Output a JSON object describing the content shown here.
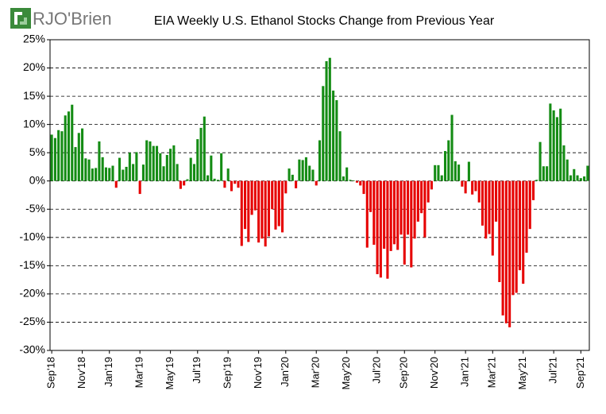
{
  "chart_data": {
    "type": "bar",
    "logo": "RJO'Brien",
    "title": "EIA Weekly U.S. Ethanol Stocks Change from Previous Year",
    "categories": [
      "Sep'18",
      null,
      null,
      null,
      null,
      null,
      null,
      null,
      null,
      "Nov'18",
      null,
      null,
      null,
      null,
      null,
      null,
      null,
      "Jan'19",
      null,
      null,
      null,
      null,
      null,
      null,
      null,
      null,
      "Mar'19",
      null,
      null,
      null,
      null,
      null,
      null,
      null,
      null,
      "May'19",
      null,
      null,
      null,
      null,
      null,
      null,
      null,
      "Jul'19",
      null,
      null,
      null,
      null,
      null,
      null,
      null,
      null,
      "Sep'19",
      null,
      null,
      null,
      null,
      null,
      null,
      null,
      null,
      "Nov'19",
      null,
      null,
      null,
      null,
      null,
      null,
      null,
      "Jan'20",
      null,
      null,
      null,
      null,
      null,
      null,
      null,
      null,
      "Mar'20",
      null,
      null,
      null,
      null,
      null,
      null,
      null,
      null,
      "May'20",
      null,
      null,
      null,
      null,
      null,
      null,
      null,
      null,
      "Jul'20",
      null,
      null,
      null,
      null,
      null,
      null,
      null,
      "Sep'20",
      null,
      null,
      null,
      null,
      null,
      null,
      null,
      null,
      "Nov'20",
      null,
      null,
      null,
      null,
      null,
      null,
      null,
      null,
      "Jan'21",
      null,
      null,
      null,
      null,
      null,
      null,
      null,
      "Mar'21",
      null,
      null,
      null,
      null,
      null,
      null,
      null,
      null,
      "May'21",
      null,
      null,
      null,
      null,
      null,
      null,
      null,
      null,
      "Jul'21",
      null,
      null,
      null,
      null,
      null,
      null,
      null,
      "Sep'21",
      null,
      null
    ],
    "values": [
      8.2,
      7.6,
      9,
      8.8,
      11.6,
      12.3,
      13.5,
      6,
      8.5,
      9.3,
      4,
      3.8,
      2.2,
      2.3,
      7,
      4.2,
      2.4,
      2.3,
      2.7,
      -1.2,
      4.1,
      2,
      2.5,
      5,
      3,
      5.1,
      -2.3,
      2.9,
      7.2,
      7,
      6.2,
      6.2,
      4.9,
      2.6,
      4.6,
      5.7,
      6.3,
      3,
      -1.4,
      -0.8,
      0.3,
      4.1,
      3,
      7.4,
      9.4,
      11.4,
      1,
      4.5,
      0.4,
      0.2,
      4.9,
      -1.2,
      2.2,
      -1.8,
      -0.5,
      -1.2,
      -11.5,
      -8.5,
      -10.8,
      -6,
      -5.2,
      -10.9,
      -10.2,
      -11.6,
      -9.8,
      -5,
      -8.6,
      -8,
      -9.1,
      -2.2,
      2.2,
      1.1,
      -1.3,
      3.8,
      3.7,
      4.2,
      2.7,
      2,
      -0.8,
      7.2,
      16.8,
      21.2,
      21.8,
      16,
      14.3,
      8.8,
      0.8,
      2.4,
      0.2,
      0.1,
      -0.3,
      -0.8,
      -2.3,
      -11.8,
      -5.5,
      -11.3,
      -16.5,
      -17.1,
      -12,
      -17.3,
      -12.4,
      -11.2,
      -12.2,
      -9.5,
      -14.8,
      -9.5,
      -15.3,
      -10.2,
      -7.2,
      -5.7,
      -10,
      -3.8,
      -1.5,
      2.8,
      2.8,
      1,
      5.3,
      7.2,
      11.7,
      3.5,
      2.9,
      -1,
      -2.2,
      3.4,
      -2.4,
      -1.8,
      -3.8,
      -7.9,
      -10.2,
      -9.4,
      -13.2,
      -7.2,
      -17.9,
      -23.8,
      -25.2,
      -25.9,
      -20.2,
      -19.8,
      -15.8,
      -18.2,
      -12.7,
      -8.5,
      -3.4,
      0.2,
      6.9,
      2.6,
      2.6,
      13.7,
      12.5,
      11.3,
      12.8,
      6.3,
      3.8,
      1,
      2.1,
      1,
      0.5,
      0.8,
      2.7
    ],
    "positive_color": "#148c14",
    "negative_color": "#e60000",
    "ylim": [
      -30,
      25
    ],
    "yticks": [
      {
        "value": -30,
        "label": "-30%"
      },
      {
        "value": -25,
        "label": "-25%"
      },
      {
        "value": -20,
        "label": "-20%"
      },
      {
        "value": -15,
        "label": "-15%"
      },
      {
        "value": -10,
        "label": "-10%"
      },
      {
        "value": -5,
        "label": "-5%"
      },
      {
        "value": 0,
        "label": "0%"
      },
      {
        "value": 5,
        "label": "5%"
      },
      {
        "value": 10,
        "label": "10%"
      },
      {
        "value": 15,
        "label": "15%"
      },
      {
        "value": 20,
        "label": "20%"
      },
      {
        "value": 25,
        "label": "25%"
      }
    ],
    "grid": true
  }
}
